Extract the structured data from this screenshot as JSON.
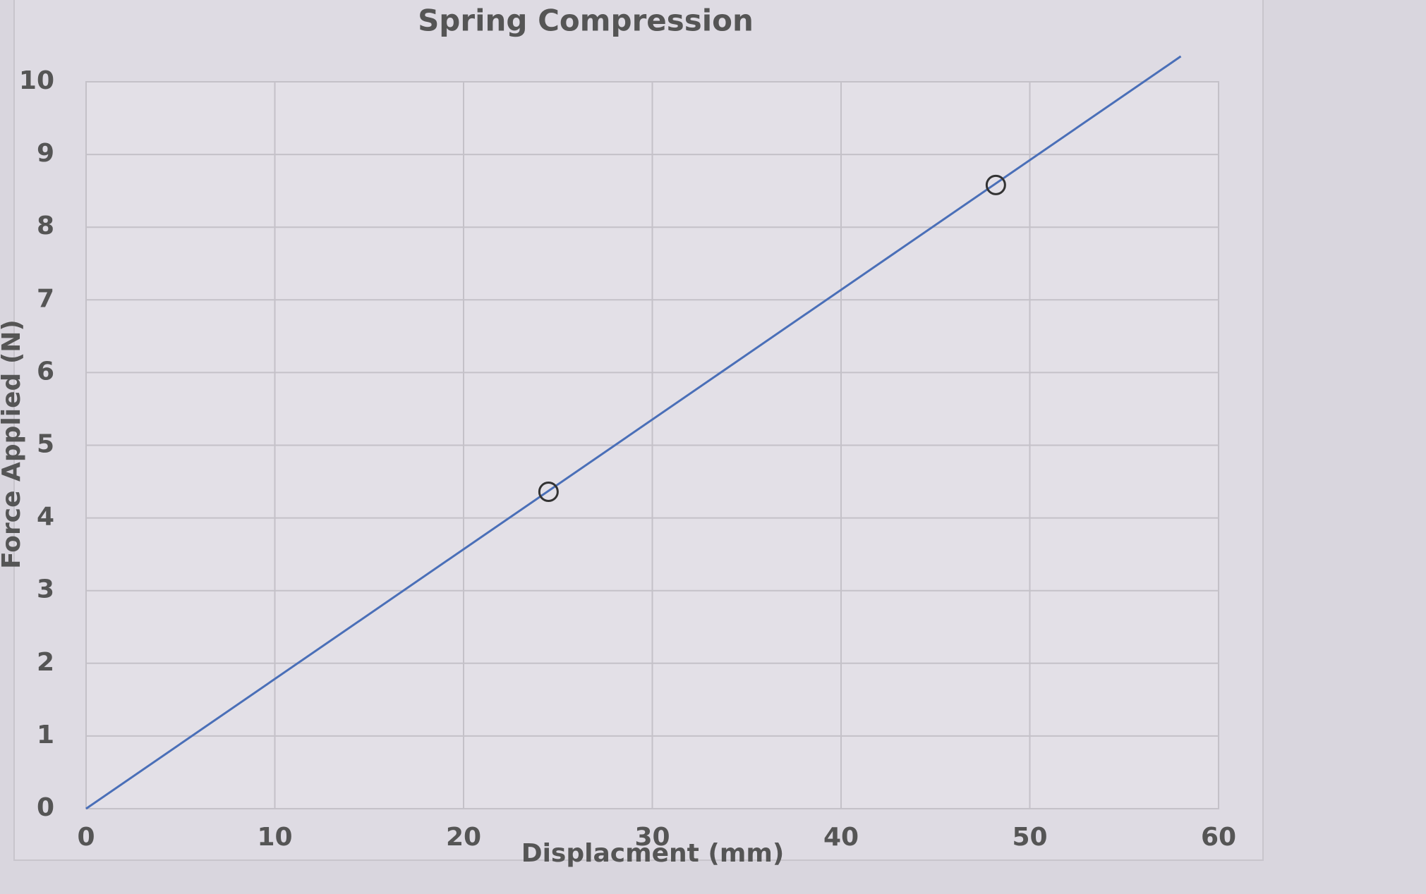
{
  "chart_data": {
    "type": "line",
    "title": "Spring Compression",
    "x_label": "Displacment (mm)",
    "y_label": "Force Applied (N)",
    "series": [
      {
        "color": "#4a6fb8",
        "x": [
          0,
          58
        ],
        "values": [
          0,
          10.35
        ]
      },
      {
        "color": "#333333",
        "marker": "circle",
        "x": [
          24.5,
          48.2
        ],
        "values": [
          4.36,
          8.58
        ]
      }
    ],
    "xlim": [
      0,
      60
    ],
    "xticks": [
      0,
      10,
      20,
      30,
      40,
      50,
      60
    ],
    "ylim": [
      0,
      10
    ],
    "yticks": [
      0,
      1,
      2,
      3,
      4,
      5,
      6,
      7,
      8,
      9,
      10
    ],
    "grid": true
  }
}
